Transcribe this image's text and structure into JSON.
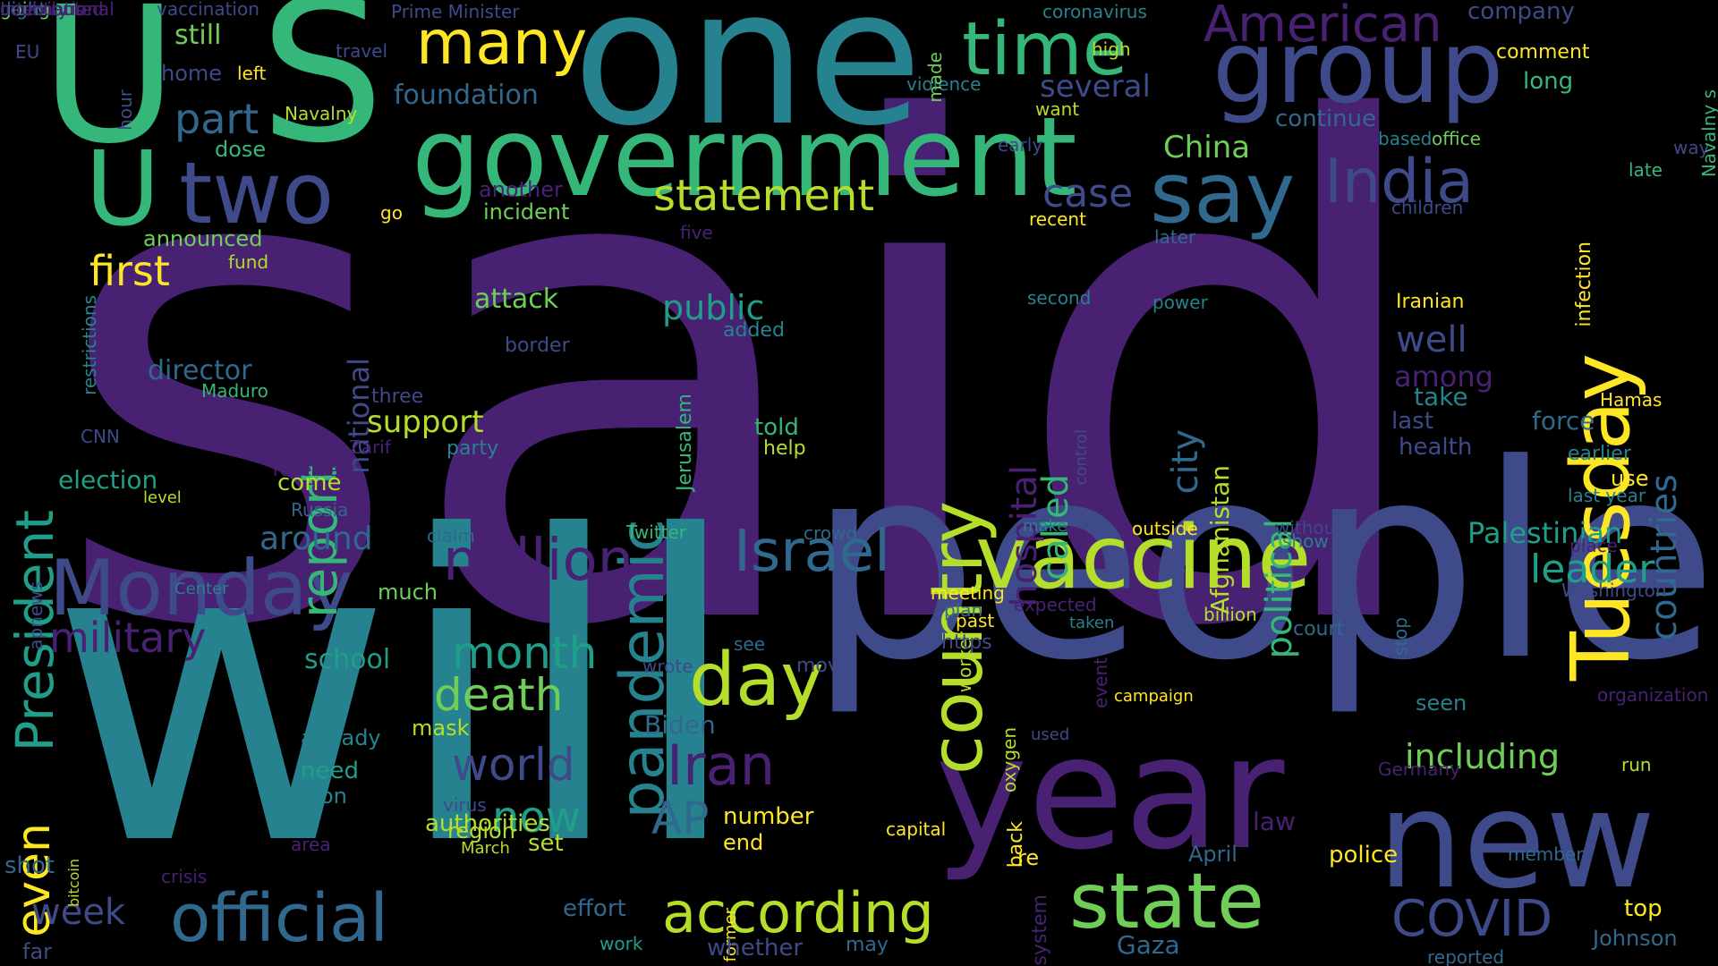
{
  "palette": {
    "background": "#000000",
    "purple": "#482173",
    "indigo": "#3e4a89",
    "blue": "#31688e",
    "teal": "#26828e",
    "green_teal": "#1f9e89",
    "green": "#35b779",
    "light_green": "#6ece58",
    "lime": "#b5de2b",
    "yellow": "#fde725"
  },
  "words": [
    {
      "text": "said",
      "c": "#482173"
    },
    {
      "text": "will",
      "c": "#26828e"
    },
    {
      "text": "people",
      "c": "#3e4a89"
    },
    {
      "text": "one",
      "c": "#26828e"
    },
    {
      "text": "S",
      "c": "#35b779"
    },
    {
      "text": "U",
      "c": "#35b779"
    },
    {
      "text": "U",
      "c": "#35b779"
    },
    {
      "text": "year",
      "c": "#482173"
    },
    {
      "text": "new",
      "c": "#3e4a89"
    },
    {
      "text": "government",
      "c": "#35b779"
    },
    {
      "text": "group",
      "c": "#3e4a89"
    },
    {
      "text": "time",
      "c": "#35b779"
    },
    {
      "text": "many",
      "c": "#fde725"
    },
    {
      "text": "two",
      "c": "#3e4a89"
    },
    {
      "text": "say",
      "c": "#31688e"
    },
    {
      "text": "India",
      "c": "#3e4a89"
    },
    {
      "text": "Tuesday",
      "c": "#fde725"
    },
    {
      "text": "American",
      "c": "#482173"
    },
    {
      "text": "country",
      "c": "#b5de2b"
    },
    {
      "text": "vaccine",
      "c": "#b5de2b"
    },
    {
      "text": "Monday",
      "c": "#3e4a89"
    },
    {
      "text": "official",
      "c": "#31688e"
    },
    {
      "text": "state",
      "c": "#6ece58"
    },
    {
      "text": "according",
      "c": "#b5de2b"
    },
    {
      "text": "million",
      "c": "#482173"
    },
    {
      "text": "Israel",
      "c": "#31688e"
    },
    {
      "text": "day",
      "c": "#b5de2b"
    },
    {
      "text": "pandemic",
      "c": "#26828e"
    },
    {
      "text": "statement",
      "c": "#b5de2b"
    },
    {
      "text": "part",
      "c": "#31688e"
    },
    {
      "text": "report",
      "c": "#35b779"
    },
    {
      "text": "President",
      "c": "#1f9e89"
    },
    {
      "text": "first",
      "c": "#fde725"
    },
    {
      "text": "military",
      "c": "#482173"
    },
    {
      "text": "even",
      "c": "#fde725"
    },
    {
      "text": "week",
      "c": "#3e4a89"
    },
    {
      "text": "COVID",
      "c": "#3e4a89"
    },
    {
      "text": "Iran",
      "c": "#482173"
    },
    {
      "text": "AP",
      "c": "#31688e"
    },
    {
      "text": "world",
      "c": "#3e4a89"
    },
    {
      "text": "now",
      "c": "#1f9e89"
    },
    {
      "text": "month",
      "c": "#1f9e89"
    },
    {
      "text": "death",
      "c": "#6ece58"
    },
    {
      "text": "leader",
      "c": "#1f9e89"
    },
    {
      "text": "including",
      "c": "#6ece58"
    },
    {
      "text": "city",
      "c": "#31688e"
    },
    {
      "text": "political",
      "c": "#35b779"
    },
    {
      "text": "countries",
      "c": "#31688e"
    },
    {
      "text": "case",
      "c": "#3e4a89"
    },
    {
      "text": "hospital",
      "c": "#482173"
    },
    {
      "text": "called",
      "c": "#35b779"
    },
    {
      "text": "national",
      "c": "#3e4a89"
    },
    {
      "text": "Palestinian",
      "c": "#1f9e89"
    },
    {
      "text": "China",
      "c": "#6ece58"
    },
    {
      "text": "several",
      "c": "#3e4a89"
    },
    {
      "text": "public",
      "c": "#1f9e89"
    },
    {
      "text": "support",
      "c": "#b5de2b"
    },
    {
      "text": "attack",
      "c": "#6ece58"
    },
    {
      "text": "around",
      "c": "#31688e"
    },
    {
      "text": "election",
      "c": "#1f9e89"
    },
    {
      "text": "school",
      "c": "#1f9e89"
    },
    {
      "text": "Afghanistan",
      "c": "#b5de2b"
    },
    {
      "text": "well",
      "c": "#3e4a89"
    },
    {
      "text": "among",
      "c": "#482173"
    },
    {
      "text": "director",
      "c": "#31688e"
    },
    {
      "text": "foundation",
      "c": "#31688e"
    },
    {
      "text": "still",
      "c": "#6ece58"
    },
    {
      "text": "home",
      "c": "#3e4a89"
    },
    {
      "text": "continue",
      "c": "#31688e"
    },
    {
      "text": "incident",
      "c": "#6ece58"
    },
    {
      "text": "announced",
      "c": "#6ece58"
    },
    {
      "text": "another",
      "c": "#482173"
    },
    {
      "text": "vaccination",
      "c": "#3e4a89"
    },
    {
      "text": "Prime Minister",
      "c": "#3e4a89"
    },
    {
      "text": "coronavirus",
      "c": "#26828e"
    },
    {
      "text": "company",
      "c": "#3e4a89"
    },
    {
      "text": "comment",
      "c": "#fde725"
    },
    {
      "text": "long",
      "c": "#35b779"
    },
    {
      "text": "office",
      "c": "#6ece58"
    },
    {
      "text": "based",
      "c": "#26828e"
    },
    {
      "text": "travel",
      "c": "#3e4a89"
    },
    {
      "text": "high",
      "c": "#b5de2b"
    },
    {
      "text": "violence",
      "c": "#26828e"
    },
    {
      "text": "want",
      "c": "#b5de2b"
    },
    {
      "text": "early",
      "c": "#3e4a89"
    },
    {
      "text": "recent",
      "c": "#fde725"
    },
    {
      "text": "second",
      "c": "#26828e"
    },
    {
      "text": "later",
      "c": "#31688e"
    },
    {
      "text": "power",
      "c": "#26828e"
    },
    {
      "text": "Iranian",
      "c": "#fde725"
    },
    {
      "text": "children",
      "c": "#3e4a89"
    },
    {
      "text": "infection",
      "c": "#fde725"
    },
    {
      "text": "late",
      "c": "#35b779"
    },
    {
      "text": "way",
      "c": "#3e4a89"
    },
    {
      "text": "Navalny s",
      "c": "#35b779"
    },
    {
      "text": "Hamas",
      "c": "#fde725"
    },
    {
      "text": "force",
      "c": "#31688e"
    },
    {
      "text": "take",
      "c": "#26828e"
    },
    {
      "text": "last",
      "c": "#3e4a89"
    },
    {
      "text": "health",
      "c": "#3e4a89"
    },
    {
      "text": "earlier",
      "c": "#26828e"
    },
    {
      "text": "use",
      "c": "#fde725"
    },
    {
      "text": "last year",
      "c": "#26828e"
    },
    {
      "text": "dose",
      "c": "#35b779"
    },
    {
      "text": "fund",
      "c": "#b5de2b"
    },
    {
      "text": "go",
      "c": "#fde725"
    },
    {
      "text": "five",
      "c": "#482173"
    },
    {
      "text": "hour",
      "c": "#3e4a89"
    },
    {
      "text": "EU",
      "c": "#3e4a89"
    },
    {
      "text": "Navalny",
      "c": "#b5de2b"
    },
    {
      "text": "left",
      "c": "#fde725"
    },
    {
      "text": "restrictions",
      "c": "#26828e"
    },
    {
      "text": "Maduro",
      "c": "#35b779"
    },
    {
      "text": "three",
      "c": "#3e4a89"
    },
    {
      "text": "added",
      "c": "#26828e"
    },
    {
      "text": "border",
      "c": "#3e4a89"
    },
    {
      "text": "told",
      "c": "#35b779"
    },
    {
      "text": "help",
      "c": "#b5de2b"
    },
    {
      "text": "party",
      "c": "#26828e"
    },
    {
      "text": "Zarif",
      "c": "#482173"
    },
    {
      "text": "Jerusalem",
      "c": "#35b779"
    },
    {
      "text": "received",
      "c": "#482173"
    },
    {
      "text": "CNN",
      "c": "#3e4a89"
    },
    {
      "text": "level",
      "c": "#b5de2b"
    },
    {
      "text": "come",
      "c": "#b5de2b"
    },
    {
      "text": "Russia",
      "c": "#31688e"
    },
    {
      "text": "claim",
      "c": "#31688e"
    },
    {
      "text": "Twitter",
      "c": "#35b779"
    },
    {
      "text": "crowd",
      "c": "#31688e"
    },
    {
      "text": "make",
      "c": "#26828e"
    },
    {
      "text": "outside",
      "c": "#fde725"
    },
    {
      "text": "without",
      "c": "#3e4a89"
    },
    {
      "text": "show",
      "c": "#26828e"
    },
    {
      "text": "place",
      "c": "#482173"
    },
    {
      "text": "Washington",
      "c": "#3e4a89"
    },
    {
      "text": "apnews",
      "c": "#3e4a89"
    },
    {
      "text": "Center",
      "c": "#26828e"
    },
    {
      "text": "much",
      "c": "#6ece58"
    },
    {
      "text": "meeting",
      "c": "#fde725"
    },
    {
      "text": "expected",
      "c": "#482173"
    },
    {
      "text": "plan",
      "c": "#31688e"
    },
    {
      "text": "past",
      "c": "#fde725"
    },
    {
      "text": "billion",
      "c": "#b5de2b"
    },
    {
      "text": "taken",
      "c": "#26828e"
    },
    {
      "text": "worker",
      "c": "#b5de2b"
    },
    {
      "text": "court",
      "c": "#31688e"
    },
    {
      "text": "https",
      "c": "#3e4a89"
    },
    {
      "text": "move",
      "c": "#3e4a89"
    },
    {
      "text": "wrote",
      "c": "#3e4a89"
    },
    {
      "text": "see",
      "c": "#31688e"
    },
    {
      "text": "event",
      "c": "#482173"
    },
    {
      "text": "campaign",
      "c": "#fde725"
    },
    {
      "text": "stop",
      "c": "#31688e"
    },
    {
      "text": "organization",
      "c": "#482173"
    },
    {
      "text": "seen",
      "c": "#26828e"
    },
    {
      "text": "already",
      "c": "#26828e"
    },
    {
      "text": "mask",
      "c": "#b5de2b"
    },
    {
      "text": "Biden",
      "c": "#31688e"
    },
    {
      "text": "used",
      "c": "#3e4a89"
    },
    {
      "text": "oxygen",
      "c": "#b5de2b"
    },
    {
      "text": "need",
      "c": "#1f9e89"
    },
    {
      "text": "nation",
      "c": "#26828e"
    },
    {
      "text": "authorities",
      "c": "#b5de2b"
    },
    {
      "text": "region",
      "c": "#b5de2b"
    },
    {
      "text": "area",
      "c": "#482173"
    },
    {
      "text": "bitcoin",
      "c": "#b5de2b"
    },
    {
      "text": "virus",
      "c": "#3e4a89"
    },
    {
      "text": "March",
      "c": "#b5de2b"
    },
    {
      "text": "number",
      "c": "#fde725"
    },
    {
      "text": "end",
      "c": "#fde725"
    },
    {
      "text": "set",
      "c": "#b5de2b"
    },
    {
      "text": "Germany",
      "c": "#482173"
    },
    {
      "text": "run",
      "c": "#b5de2b"
    },
    {
      "text": "law",
      "c": "#482173"
    },
    {
      "text": "police",
      "c": "#fde725"
    },
    {
      "text": "capital",
      "c": "#fde725"
    },
    {
      "text": "back",
      "c": "#fde725"
    },
    {
      "text": "re",
      "c": "#fde725"
    },
    {
      "text": "April",
      "c": "#31688e"
    },
    {
      "text": "member",
      "c": "#31688e"
    },
    {
      "text": "former",
      "c": "#fde725"
    },
    {
      "text": "system",
      "c": "#482173"
    },
    {
      "text": "top",
      "c": "#fde725"
    },
    {
      "text": "Johnson",
      "c": "#31688e"
    },
    {
      "text": "shot",
      "c": "#31688e"
    },
    {
      "text": "crisis",
      "c": "#482173"
    },
    {
      "text": "far",
      "c": "#3e4a89"
    },
    {
      "text": "effort",
      "c": "#31688e"
    },
    {
      "text": "work",
      "c": "#1f9e89"
    },
    {
      "text": "whether",
      "c": "#3e4a89"
    },
    {
      "text": "may",
      "c": "#31688e"
    },
    {
      "text": "Gaza",
      "c": "#31688e"
    },
    {
      "text": "reported",
      "c": "#31688e"
    },
    {
      "text": "made",
      "c": "#6ece58"
    },
    {
      "text": "control",
      "c": "#3e4a89"
    },
    {
      "text": "decision",
      "c": "#3e4a89"
    },
    {
      "text": "going",
      "c": "#6ece58"
    },
    {
      "text": "International",
      "c": "#482173"
    },
    {
      "text": "contributed",
      "c": "#482173"
    },
    {
      "text": "night",
      "c": "#31688e"
    },
    {
      "text": "country s",
      "c": "#482173"
    }
  ]
}
